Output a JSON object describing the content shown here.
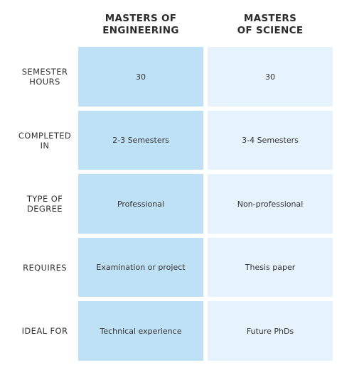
{
  "columns": {
    "engineering": "MASTERS OF\nENGINEERING",
    "science": "MASTERS\nOF SCIENCE"
  },
  "rows": [
    {
      "label": "SEMESTER\nHOURS",
      "engineering": "30",
      "science": "30"
    },
    {
      "label": "COMPLETED\nIN",
      "engineering": "2-3 Semesters",
      "science": "3-4 Semesters"
    },
    {
      "label": "TYPE OF\nDEGREE",
      "engineering": "Professional",
      "science": "Non-professional"
    },
    {
      "label": "REQUIRES",
      "engineering": "Examination or project",
      "science": "Thesis paper"
    },
    {
      "label": "IDEAL FOR",
      "engineering": "Technical experience",
      "science": "Future PhDs"
    }
  ],
  "colors": {
    "engineering_fill": "#bfe1f6",
    "science_fill": "#e6f3fc"
  }
}
